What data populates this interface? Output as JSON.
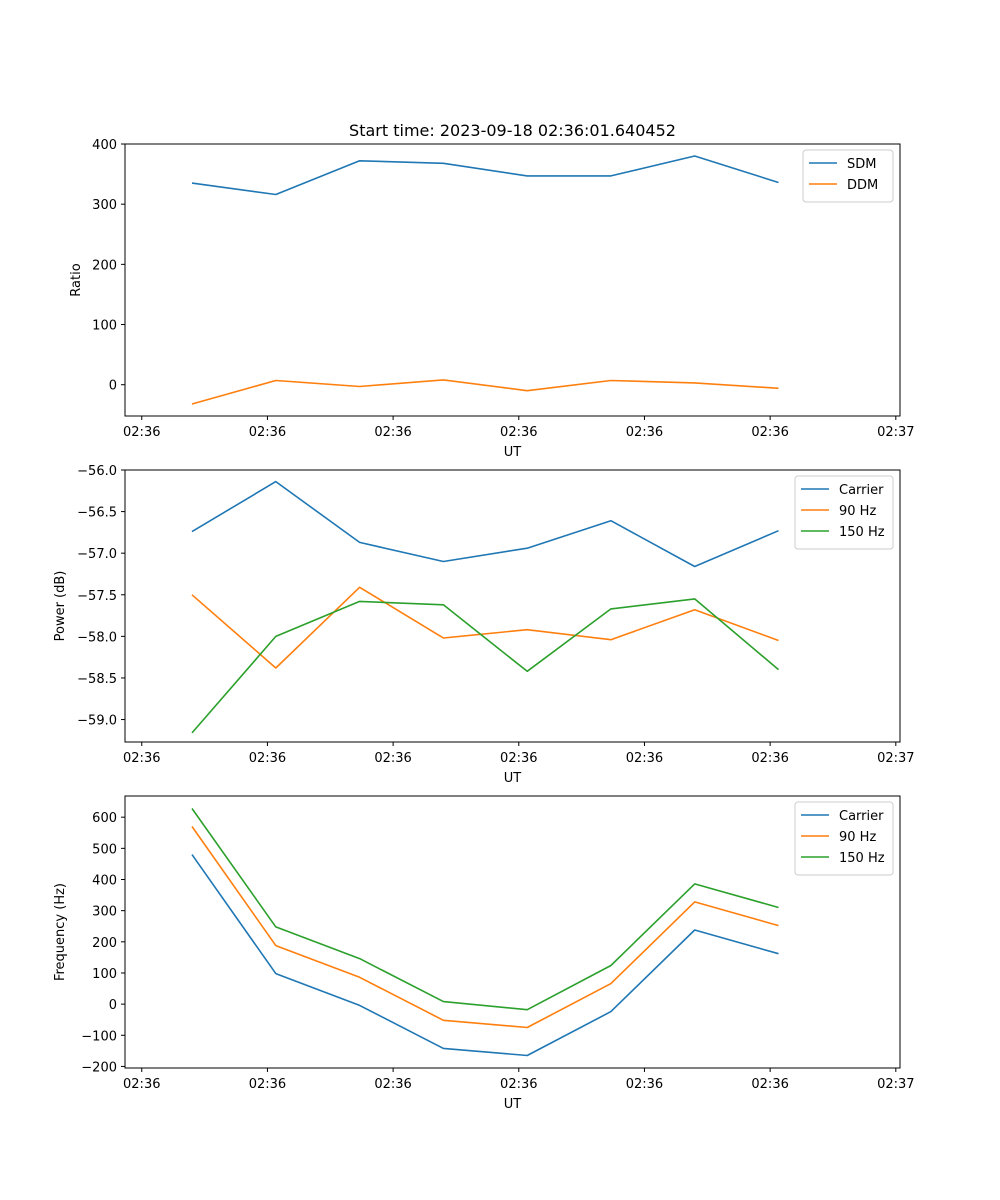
{
  "figure_title": "Start time: 2023-09-18 02:36:01.640452",
  "colors": {
    "blue": "#1f77b4",
    "orange": "#ff7f0e",
    "green": "#2ca02c"
  },
  "chart_data": [
    {
      "type": "line",
      "title": "Start time: 2023-09-18 02:36:01.640452",
      "xlabel": "UT",
      "ylabel": "Ratio",
      "x": [
        1,
        2,
        3,
        4,
        5,
        6,
        7,
        8
      ],
      "xlim": [
        0.2,
        9.45
      ],
      "ylim": [
        -52,
        400
      ],
      "xticks": [
        0.4,
        1.9,
        3.4,
        4.9,
        6.4,
        7.9,
        9.4
      ],
      "xtick_labels": [
        "02:36",
        "02:36",
        "02:36",
        "02:36",
        "02:36",
        "02:36",
        "02:37"
      ],
      "yticks": [
        0,
        100,
        200,
        300,
        400
      ],
      "ytick_labels": [
        "0",
        "100",
        "200",
        "300",
        "400"
      ],
      "legend_position": "upper-right",
      "series": [
        {
          "name": "SDM",
          "color": "#1f77b4",
          "values": [
            335,
            316,
            372,
            368,
            347,
            347,
            380,
            336
          ]
        },
        {
          "name": "DDM",
          "color": "#ff7f0e",
          "values": [
            -32,
            7,
            -3,
            8,
            -10,
            7,
            3,
            -6
          ]
        }
      ]
    },
    {
      "type": "line",
      "xlabel": "UT",
      "ylabel": "Power (dB)",
      "x": [
        1,
        2,
        3,
        4,
        5,
        6,
        7,
        8
      ],
      "xlim": [
        0.2,
        9.45
      ],
      "ylim": [
        -59.27,
        -56.0
      ],
      "xticks": [
        0.4,
        1.9,
        3.4,
        4.9,
        6.4,
        7.9,
        9.4
      ],
      "xtick_labels": [
        "02:36",
        "02:36",
        "02:36",
        "02:36",
        "02:36",
        "02:36",
        "02:37"
      ],
      "yticks": [
        -59.0,
        -58.5,
        -58.0,
        -57.5,
        -57.0,
        -56.5,
        -56.0
      ],
      "ytick_labels": [
        "−59.0",
        "−58.5",
        "−58.0",
        "−57.5",
        "−57.0",
        "−56.5",
        "−56.0"
      ],
      "legend_position": "upper-right",
      "series": [
        {
          "name": "Carrier",
          "color": "#1f77b4",
          "values": [
            -56.74,
            -56.14,
            -56.87,
            -57.1,
            -56.94,
            -56.61,
            -57.16,
            -56.73
          ]
        },
        {
          "name": "90 Hz",
          "color": "#ff7f0e",
          "values": [
            -57.5,
            -58.38,
            -57.41,
            -58.02,
            -57.92,
            -58.04,
            -57.68,
            -58.05
          ]
        },
        {
          "name": "150 Hz",
          "color": "#2ca02c",
          "values": [
            -59.16,
            -58.0,
            -57.58,
            -57.62,
            -58.42,
            -57.67,
            -57.55,
            -58.4
          ]
        }
      ]
    },
    {
      "type": "line",
      "xlabel": "UT",
      "ylabel": "Frequency (Hz)",
      "x": [
        1,
        2,
        3,
        4,
        5,
        6,
        7,
        8
      ],
      "xlim": [
        0.2,
        9.45
      ],
      "ylim": [
        -205,
        668
      ],
      "xticks": [
        0.4,
        1.9,
        3.4,
        4.9,
        6.4,
        7.9,
        9.4
      ],
      "xtick_labels": [
        "02:36",
        "02:36",
        "02:36",
        "02:36",
        "02:36",
        "02:36",
        "02:37"
      ],
      "yticks": [
        -200,
        -100,
        0,
        100,
        200,
        300,
        400,
        500,
        600
      ],
      "ytick_labels": [
        "−200",
        "−100",
        "0",
        "100",
        "200",
        "300",
        "400",
        "500",
        "600"
      ],
      "legend_position": "upper-right",
      "series": [
        {
          "name": "Carrier",
          "color": "#1f77b4",
          "values": [
            480,
            98,
            -4,
            -142,
            -165,
            -24,
            238,
            162
          ]
        },
        {
          "name": "90 Hz",
          "color": "#ff7f0e",
          "values": [
            570,
            188,
            86,
            -52,
            -75,
            66,
            328,
            252
          ]
        },
        {
          "name": "150 Hz",
          "color": "#2ca02c",
          "values": [
            628,
            248,
            146,
            8,
            -18,
            124,
            386,
            310
          ]
        }
      ]
    }
  ]
}
